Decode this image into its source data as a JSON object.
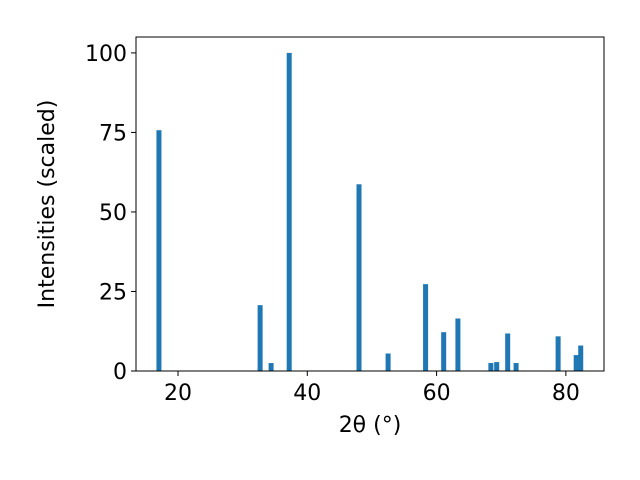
{
  "chart_data": {
    "type": "bar",
    "xlabel": "2θ (°)",
    "ylabel": "Intensities (scaled)",
    "x": [
      17.05,
      32.7,
      34.4,
      37.2,
      48.0,
      52.5,
      58.3,
      61.1,
      63.3,
      68.4,
      69.3,
      71.0,
      72.3,
      78.8,
      81.6,
      82.3
    ],
    "values": [
      75.7,
      20.7,
      2.5,
      100,
      58.7,
      5.5,
      27.3,
      12.2,
      16.5,
      2.5,
      2.8,
      11.8,
      2.5,
      10.9,
      5,
      8
    ],
    "color": "#1f77b4",
    "xlim": [
      13.5,
      85.9
    ],
    "xticks": [
      20,
      40,
      60,
      80
    ],
    "ylim": [
      0,
      105
    ],
    "yticks": [
      0,
      25,
      50,
      75,
      100
    ]
  }
}
